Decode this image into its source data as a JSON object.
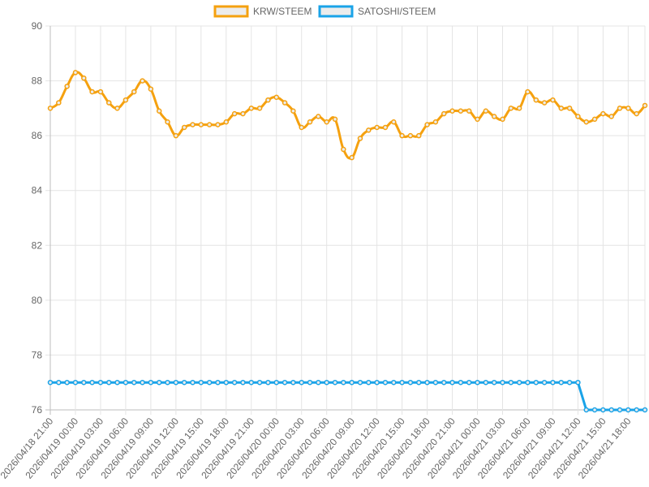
{
  "chart_data": {
    "type": "line",
    "legend_position": "top-center",
    "grid": true,
    "ylim": [
      76,
      90
    ],
    "y_ticks": [
      "76",
      "78",
      "80",
      "82",
      "84",
      "86",
      "88",
      "90"
    ],
    "x_tick_labels": [
      "2026/04/18 21:00",
      "2026/04/19 00:00",
      "2026/04/19 03:00",
      "2026/04/19 06:00",
      "2026/04/19 09:00",
      "2026/04/19 12:00",
      "2026/04/19 15:00",
      "2026/04/19 18:00",
      "2026/04/19 21:00",
      "2026/04/20 00:00",
      "2026/04/20 03:00",
      "2026/04/20 06:00",
      "2026/04/20 09:00",
      "2026/04/20 12:00",
      "2026/04/20 15:00",
      "2026/04/20 18:00",
      "2026/04/20 21:00",
      "2026/04/21 00:00",
      "2026/04/21 03:00",
      "2026/04/21 06:00",
      "2026/04/21 09:00",
      "2026/04/21 12:00",
      "2026/04/21 15:00",
      "2026/04/21 18:00"
    ],
    "x_start": "2026/04/18 21:00",
    "x_step_hours": 1,
    "series": [
      {
        "name": "KRW/STEEM",
        "color": "#f5a10f",
        "fill": "#ececec",
        "values": [
          87.0,
          87.2,
          87.8,
          88.3,
          88.1,
          87.6,
          87.6,
          87.2,
          87.0,
          87.3,
          87.6,
          88.0,
          87.7,
          86.9,
          86.5,
          86.0,
          86.3,
          86.4,
          86.4,
          86.4,
          86.4,
          86.5,
          86.8,
          86.8,
          87.0,
          87.0,
          87.3,
          87.4,
          87.2,
          86.9,
          86.3,
          86.5,
          86.7,
          86.5,
          86.6,
          85.5,
          85.2,
          85.9,
          86.2,
          86.3,
          86.3,
          86.5,
          86.0,
          86.0,
          86.0,
          86.4,
          86.5,
          86.8,
          86.9,
          86.9,
          86.9,
          86.6,
          86.9,
          86.7,
          86.6,
          87.0,
          87.0,
          87.6,
          87.3,
          87.2,
          87.3,
          87.0,
          87.0,
          86.7,
          86.5,
          86.6,
          86.8,
          86.7,
          87.0,
          87.0,
          86.8,
          87.1
        ]
      },
      {
        "name": "SATOSHI/STEEM",
        "color": "#1aa3e8",
        "fill": "#ececec",
        "values": [
          77,
          77,
          77,
          77,
          77,
          77,
          77,
          77,
          77,
          77,
          77,
          77,
          77,
          77,
          77,
          77,
          77,
          77,
          77,
          77,
          77,
          77,
          77,
          77,
          77,
          77,
          77,
          77,
          77,
          77,
          77,
          77,
          77,
          77,
          77,
          77,
          77,
          77,
          77,
          77,
          77,
          77,
          77,
          77,
          77,
          77,
          77,
          77,
          77,
          77,
          77,
          77,
          77,
          77,
          77,
          77,
          77,
          77,
          77,
          77,
          77,
          77,
          77,
          77,
          76,
          76,
          76,
          76,
          76,
          76,
          76,
          76
        ]
      }
    ]
  }
}
